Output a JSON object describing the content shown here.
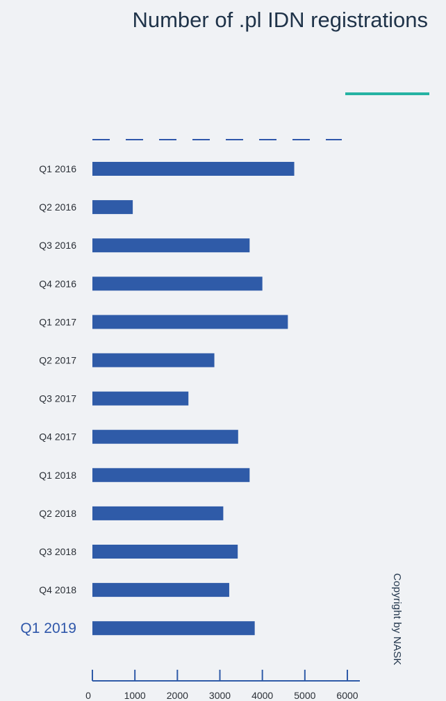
{
  "chart_data": {
    "type": "bar",
    "orientation": "horizontal",
    "title": "Number of .pl IDN registrations",
    "categories": [
      "Q1 2016",
      "Q2 2016",
      "Q3 2016",
      "Q4 2016",
      "Q1 2017",
      "Q2 2017",
      "Q3 2017",
      "Q4 2017",
      "Q1 2018",
      "Q2 2018",
      "Q3 2018",
      "Q4 2018",
      "Q1 2019"
    ],
    "values": [
      4750,
      950,
      3700,
      4000,
      4600,
      2870,
      2260,
      3430,
      3700,
      3080,
      3420,
      3220,
      3820
    ],
    "highlight_category": "Q1 2019",
    "xlim": [
      0,
      6000
    ],
    "xticks": [
      0,
      1000,
      2000,
      3000,
      4000,
      5000,
      6000
    ],
    "xtick_labels": [
      "0",
      "1000",
      "2000",
      "3000",
      "4000",
      "5000",
      "6000"
    ],
    "bar_color": "#2f5ba8",
    "accent_color": "#26b3a3",
    "grid": false,
    "legend": "none"
  },
  "copyright": "Copyright by NASK"
}
